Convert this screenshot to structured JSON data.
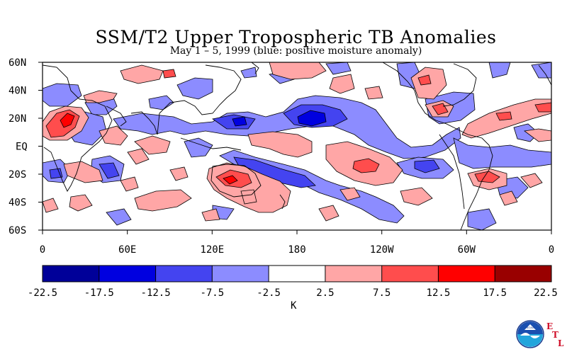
{
  "title": "SSM/T2 Upper Tropospheric TB Anomalies",
  "subtitle": "May 1 – 5, 1999 (blue: positive moisture anomaly)",
  "map": {
    "lat_labels": [
      "60N",
      "40N",
      "20N",
      "EQ",
      "20S",
      "40S",
      "60S"
    ],
    "lon_labels": [
      "0",
      "60E",
      "120E",
      "180",
      "120W",
      "60W",
      "0"
    ]
  },
  "legend": {
    "unit": "K",
    "ticks": [
      "-22.5",
      "-17.5",
      "-12.5",
      "-7.5",
      "-2.5",
      "2.5",
      "7.5",
      "12.5",
      "17.5",
      "22.5"
    ],
    "colors": [
      "#000099",
      "#0000e0",
      "#4444f0",
      "#8c8cff",
      "#ffffff",
      "#ffa6a6",
      "#ff4d4d",
      "#ff0000",
      "#990000"
    ]
  },
  "colors": {
    "pos_moist_1": "#8c8cff",
    "pos_moist_2": "#4444f0",
    "pos_moist_3": "#0000e0",
    "dry_1": "#ffa6a6",
    "dry_2": "#ff4d4d",
    "dry_3": "#ff0000"
  },
  "logo": {
    "name": "NOAA",
    "letters": [
      "E",
      "T",
      "L"
    ]
  }
}
